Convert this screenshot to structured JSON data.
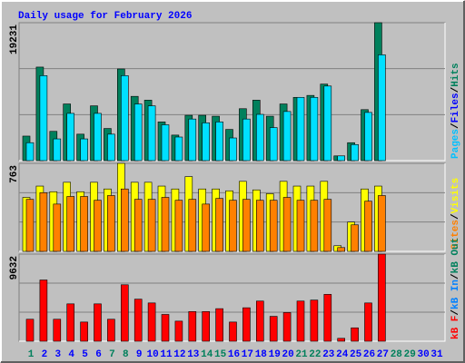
{
  "chart_data": {
    "type": "bar",
    "title": "Daily usage for February 2026",
    "categories": [
      "1",
      "2",
      "3",
      "4",
      "5",
      "6",
      "7",
      "8",
      "9",
      "10",
      "11",
      "12",
      "13",
      "14",
      "15",
      "16",
      "17",
      "18",
      "19",
      "20",
      "21",
      "22",
      "23",
      "24",
      "25",
      "26",
      "27",
      "28",
      "29",
      "30",
      "31"
    ],
    "category_colors": [
      "#00805c",
      "#0000ff",
      "#0000ff",
      "#0000ff",
      "#0000ff",
      "#0000ff",
      "#00805c",
      "#00805c",
      "#0000ff",
      "#0000ff",
      "#0000ff",
      "#0000ff",
      "#0000ff",
      "#00805c",
      "#00805c",
      "#0000ff",
      "#0000ff",
      "#0000ff",
      "#0000ff",
      "#0000ff",
      "#00805c",
      "#00805c",
      "#0000ff",
      "#0000ff",
      "#0000ff",
      "#0000ff",
      "#0000ff",
      "#00805c",
      "#00805c",
      "#0000ff",
      "#0000ff"
    ],
    "legend_separator": "/",
    "panels": [
      {
        "ylim": [
          0,
          19231
        ],
        "yticks": [
          19231
        ],
        "legend": [
          {
            "name": "Pages",
            "color": "#00c0ff"
          },
          {
            "name": "Files",
            "color": "#0000ff"
          },
          {
            "name": "Hits",
            "color": "#00805c"
          }
        ],
        "series": [
          {
            "name": "Hits",
            "color": "#00805c",
            "values": [
              3420,
              13040,
              4080,
              7900,
              3690,
              7640,
              4480,
              12780,
              8960,
              8430,
              5400,
              3560,
              6320,
              6320,
              6190,
              4350,
              7240,
              8430,
              6190,
              7900,
              8820,
              9090,
              10670,
              660,
              2500,
              7110,
              19231,
              null,
              null,
              null,
              null
            ]
          },
          {
            "name": "Pages",
            "color": "#00e0ff",
            "values": [
              2500,
              11850,
              3030,
              6590,
              3030,
              6590,
              3690,
              11850,
              7900,
              7640,
              5000,
              3290,
              5800,
              5270,
              5400,
              3160,
              5800,
              6450,
              4610,
              6850,
              8820,
              8820,
              10400,
              660,
              2240,
              6720,
              14750,
              null,
              null,
              null,
              null
            ]
          }
        ]
      },
      {
        "ylim": [
          0,
          763
        ],
        "yticks": [
          763
        ],
        "legend": [
          {
            "name": "Sites",
            "color": "#ff8000"
          },
          {
            "name": "Visits",
            "color": "#ffff00"
          }
        ],
        "series": [
          {
            "name": "Visits",
            "color": "#ffff00",
            "values": [
              468,
              566,
              517,
              599,
              517,
              599,
              541,
              763,
              599,
              599,
              566,
              541,
              648,
              541,
              541,
              525,
              607,
              533,
              500,
              607,
              566,
              566,
              607,
              49,
              254,
              541,
              566,
              null,
              null,
              null,
              null
            ]
          },
          {
            "name": "Sites",
            "color": "#ff8000",
            "values": [
              451,
              509,
              410,
              476,
              476,
              443,
              484,
              541,
              451,
              451,
              468,
              443,
              451,
              410,
              459,
              443,
              451,
              443,
              443,
              468,
              443,
              443,
              451,
              33,
              230,
              435,
              484,
              null,
              null,
              null,
              null
            ]
          }
        ]
      },
      {
        "ylim": [
          0,
          9632
        ],
        "yticks": [
          9632
        ],
        "legend": [
          {
            "name": "kB F",
            "color": "#ff0000"
          },
          {
            "name": "kB In",
            "color": "#0080ff"
          },
          {
            "name": "kB Out",
            "color": "#00805c"
          }
        ],
        "series": [
          {
            "name": "kB F",
            "color": "#ff0000",
            "values": [
              2430,
              6770,
              2430,
              4130,
              2120,
              4130,
              2430,
              6240,
              4650,
              4230,
              2960,
              2220,
              3280,
              3280,
              3600,
              2120,
              3700,
              4440,
              2750,
              3170,
              4440,
              4550,
              5180,
              320,
              1480,
              4230,
              9632,
              null,
              null,
              null,
              null
            ]
          }
        ]
      }
    ]
  }
}
